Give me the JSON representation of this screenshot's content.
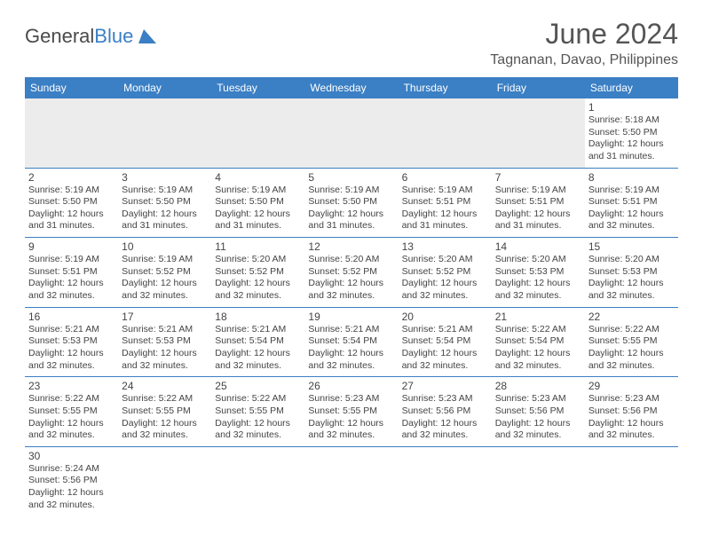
{
  "logo": {
    "part1": "General",
    "part2": "Blue"
  },
  "title": "June 2024",
  "location": "Tagnanan, Davao, Philippines",
  "colors": {
    "header_bg": "#3b7fc4",
    "header_text": "#ffffff",
    "text": "#444444",
    "title_text": "#555555",
    "logo_grey": "#4a4a4a",
    "logo_blue": "#3b7fc4",
    "empty_row": "#ececec",
    "border": "#3b7fc4",
    "background": "#ffffff"
  },
  "typography": {
    "title_fontsize": 32,
    "location_fontsize": 16,
    "logo_fontsize": 22,
    "header_fontsize": 12,
    "daynum_fontsize": 12,
    "info_fontsize": 10.5
  },
  "calendar": {
    "day_headers": [
      "Sunday",
      "Monday",
      "Tuesday",
      "Wednesday",
      "Thursday",
      "Friday",
      "Saturday"
    ],
    "weeks": [
      [
        null,
        null,
        null,
        null,
        null,
        null,
        {
          "n": "1",
          "sr": "Sunrise: 5:18 AM",
          "ss": "Sunset: 5:50 PM",
          "d1": "Daylight: 12 hours",
          "d2": "and 31 minutes."
        }
      ],
      [
        {
          "n": "2",
          "sr": "Sunrise: 5:19 AM",
          "ss": "Sunset: 5:50 PM",
          "d1": "Daylight: 12 hours",
          "d2": "and 31 minutes."
        },
        {
          "n": "3",
          "sr": "Sunrise: 5:19 AM",
          "ss": "Sunset: 5:50 PM",
          "d1": "Daylight: 12 hours",
          "d2": "and 31 minutes."
        },
        {
          "n": "4",
          "sr": "Sunrise: 5:19 AM",
          "ss": "Sunset: 5:50 PM",
          "d1": "Daylight: 12 hours",
          "d2": "and 31 minutes."
        },
        {
          "n": "5",
          "sr": "Sunrise: 5:19 AM",
          "ss": "Sunset: 5:50 PM",
          "d1": "Daylight: 12 hours",
          "d2": "and 31 minutes."
        },
        {
          "n": "6",
          "sr": "Sunrise: 5:19 AM",
          "ss": "Sunset: 5:51 PM",
          "d1": "Daylight: 12 hours",
          "d2": "and 31 minutes."
        },
        {
          "n": "7",
          "sr": "Sunrise: 5:19 AM",
          "ss": "Sunset: 5:51 PM",
          "d1": "Daylight: 12 hours",
          "d2": "and 31 minutes."
        },
        {
          "n": "8",
          "sr": "Sunrise: 5:19 AM",
          "ss": "Sunset: 5:51 PM",
          "d1": "Daylight: 12 hours",
          "d2": "and 32 minutes."
        }
      ],
      [
        {
          "n": "9",
          "sr": "Sunrise: 5:19 AM",
          "ss": "Sunset: 5:51 PM",
          "d1": "Daylight: 12 hours",
          "d2": "and 32 minutes."
        },
        {
          "n": "10",
          "sr": "Sunrise: 5:19 AM",
          "ss": "Sunset: 5:52 PM",
          "d1": "Daylight: 12 hours",
          "d2": "and 32 minutes."
        },
        {
          "n": "11",
          "sr": "Sunrise: 5:20 AM",
          "ss": "Sunset: 5:52 PM",
          "d1": "Daylight: 12 hours",
          "d2": "and 32 minutes."
        },
        {
          "n": "12",
          "sr": "Sunrise: 5:20 AM",
          "ss": "Sunset: 5:52 PM",
          "d1": "Daylight: 12 hours",
          "d2": "and 32 minutes."
        },
        {
          "n": "13",
          "sr": "Sunrise: 5:20 AM",
          "ss": "Sunset: 5:52 PM",
          "d1": "Daylight: 12 hours",
          "d2": "and 32 minutes."
        },
        {
          "n": "14",
          "sr": "Sunrise: 5:20 AM",
          "ss": "Sunset: 5:53 PM",
          "d1": "Daylight: 12 hours",
          "d2": "and 32 minutes."
        },
        {
          "n": "15",
          "sr": "Sunrise: 5:20 AM",
          "ss": "Sunset: 5:53 PM",
          "d1": "Daylight: 12 hours",
          "d2": "and 32 minutes."
        }
      ],
      [
        {
          "n": "16",
          "sr": "Sunrise: 5:21 AM",
          "ss": "Sunset: 5:53 PM",
          "d1": "Daylight: 12 hours",
          "d2": "and 32 minutes."
        },
        {
          "n": "17",
          "sr": "Sunrise: 5:21 AM",
          "ss": "Sunset: 5:53 PM",
          "d1": "Daylight: 12 hours",
          "d2": "and 32 minutes."
        },
        {
          "n": "18",
          "sr": "Sunrise: 5:21 AM",
          "ss": "Sunset: 5:54 PM",
          "d1": "Daylight: 12 hours",
          "d2": "and 32 minutes."
        },
        {
          "n": "19",
          "sr": "Sunrise: 5:21 AM",
          "ss": "Sunset: 5:54 PM",
          "d1": "Daylight: 12 hours",
          "d2": "and 32 minutes."
        },
        {
          "n": "20",
          "sr": "Sunrise: 5:21 AM",
          "ss": "Sunset: 5:54 PM",
          "d1": "Daylight: 12 hours",
          "d2": "and 32 minutes."
        },
        {
          "n": "21",
          "sr": "Sunrise: 5:22 AM",
          "ss": "Sunset: 5:54 PM",
          "d1": "Daylight: 12 hours",
          "d2": "and 32 minutes."
        },
        {
          "n": "22",
          "sr": "Sunrise: 5:22 AM",
          "ss": "Sunset: 5:55 PM",
          "d1": "Daylight: 12 hours",
          "d2": "and 32 minutes."
        }
      ],
      [
        {
          "n": "23",
          "sr": "Sunrise: 5:22 AM",
          "ss": "Sunset: 5:55 PM",
          "d1": "Daylight: 12 hours",
          "d2": "and 32 minutes."
        },
        {
          "n": "24",
          "sr": "Sunrise: 5:22 AM",
          "ss": "Sunset: 5:55 PM",
          "d1": "Daylight: 12 hours",
          "d2": "and 32 minutes."
        },
        {
          "n": "25",
          "sr": "Sunrise: 5:22 AM",
          "ss": "Sunset: 5:55 PM",
          "d1": "Daylight: 12 hours",
          "d2": "and 32 minutes."
        },
        {
          "n": "26",
          "sr": "Sunrise: 5:23 AM",
          "ss": "Sunset: 5:55 PM",
          "d1": "Daylight: 12 hours",
          "d2": "and 32 minutes."
        },
        {
          "n": "27",
          "sr": "Sunrise: 5:23 AM",
          "ss": "Sunset: 5:56 PM",
          "d1": "Daylight: 12 hours",
          "d2": "and 32 minutes."
        },
        {
          "n": "28",
          "sr": "Sunrise: 5:23 AM",
          "ss": "Sunset: 5:56 PM",
          "d1": "Daylight: 12 hours",
          "d2": "and 32 minutes."
        },
        {
          "n": "29",
          "sr": "Sunrise: 5:23 AM",
          "ss": "Sunset: 5:56 PM",
          "d1": "Daylight: 12 hours",
          "d2": "and 32 minutes."
        }
      ],
      [
        {
          "n": "30",
          "sr": "Sunrise: 5:24 AM",
          "ss": "Sunset: 5:56 PM",
          "d1": "Daylight: 12 hours",
          "d2": "and 32 minutes."
        },
        null,
        null,
        null,
        null,
        null,
        null
      ]
    ]
  }
}
